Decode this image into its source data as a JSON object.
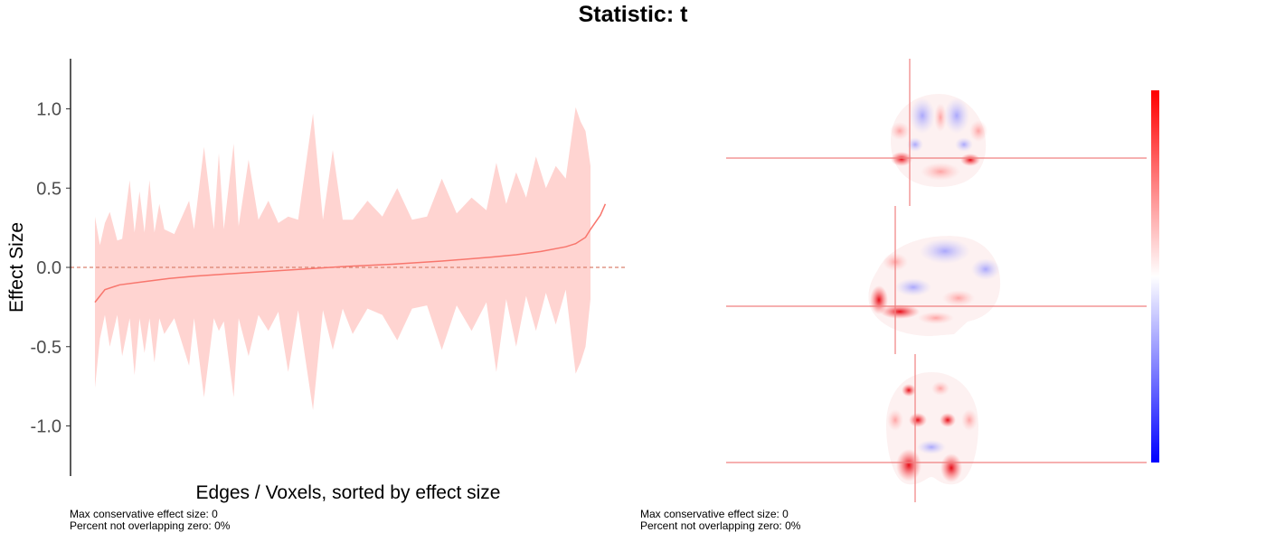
{
  "title": "Statistic: t",
  "left_panel": {
    "caption_line1": "Max conservative effect size: 0",
    "caption_line2": "Percent not overlapping zero: 0%"
  },
  "right_panel": {
    "caption_line1": "Max conservative effect size: 0",
    "caption_line2": "Percent not overlapping zero: 0%",
    "views": [
      "coronal",
      "sagittal",
      "axial"
    ],
    "colorbar_colors": [
      "#ff0000",
      "#ffffff",
      "#0000ff"
    ]
  },
  "chart_data": {
    "type": "area",
    "title": "Statistic: t",
    "xlabel": "Edges / Voxels, sorted by effect size",
    "ylabel": "Effect Size",
    "ylim": [
      -1.32,
      1.32
    ],
    "yticks": [
      -1.0,
      -0.5,
      0.0,
      0.5,
      1.0
    ],
    "ytick_labels": [
      "-1.0",
      "-0.5",
      "0.0",
      "0.5",
      "1.0"
    ],
    "x_ticks_shown": false,
    "grid": false,
    "reference_line": 0,
    "series": [
      {
        "role": "effect-size",
        "color": "#f8766d",
        "x": [
          0,
          0.02,
          0.05,
          0.1,
          0.15,
          0.2,
          0.3,
          0.4,
          0.5,
          0.6,
          0.7,
          0.8,
          0.85,
          0.9,
          0.95,
          0.97,
          0.99,
          1.0,
          1.02,
          1.03
        ],
        "values": [
          -0.22,
          -0.14,
          -0.11,
          -0.09,
          -0.07,
          -0.055,
          -0.035,
          -0.015,
          0.005,
          0.02,
          0.04,
          0.065,
          0.08,
          0.1,
          0.13,
          0.15,
          0.19,
          0.24,
          0.33,
          0.4
        ]
      },
      {
        "role": "confidence-band-upper",
        "color": "#ffd4d1",
        "x": [
          0,
          0.01,
          0.02,
          0.03,
          0.045,
          0.055,
          0.07,
          0.08,
          0.09,
          0.1,
          0.11,
          0.12,
          0.13,
          0.14,
          0.16,
          0.19,
          0.2,
          0.22,
          0.24,
          0.25,
          0.26,
          0.28,
          0.29,
          0.31,
          0.33,
          0.35,
          0.37,
          0.39,
          0.41,
          0.44,
          0.46,
          0.48,
          0.5,
          0.52,
          0.55,
          0.58,
          0.61,
          0.64,
          0.67,
          0.7,
          0.73,
          0.76,
          0.79,
          0.81,
          0.83,
          0.85,
          0.87,
          0.89,
          0.91,
          0.93,
          0.95,
          0.97,
          0.98,
          0.99,
          1.0
        ],
        "values": [
          0.32,
          0.14,
          0.28,
          0.35,
          0.17,
          0.18,
          0.55,
          0.22,
          0.48,
          0.22,
          0.55,
          0.22,
          0.4,
          0.24,
          0.21,
          0.42,
          0.24,
          0.76,
          0.24,
          0.72,
          0.24,
          0.78,
          0.26,
          0.68,
          0.3,
          0.42,
          0.28,
          0.32,
          0.3,
          0.97,
          0.3,
          0.74,
          0.3,
          0.3,
          0.42,
          0.32,
          0.5,
          0.3,
          0.32,
          0.56,
          0.34,
          0.44,
          0.36,
          0.66,
          0.4,
          0.6,
          0.44,
          0.7,
          0.5,
          0.64,
          0.56,
          1.01,
          0.92,
          0.86,
          0.64
        ]
      },
      {
        "role": "confidence-band-lower",
        "color": "#ffd4d1",
        "x": [
          0,
          0.01,
          0.02,
          0.03,
          0.045,
          0.055,
          0.07,
          0.08,
          0.09,
          0.1,
          0.11,
          0.12,
          0.13,
          0.14,
          0.16,
          0.19,
          0.2,
          0.22,
          0.24,
          0.25,
          0.26,
          0.28,
          0.29,
          0.31,
          0.33,
          0.35,
          0.37,
          0.39,
          0.41,
          0.44,
          0.46,
          0.48,
          0.5,
          0.52,
          0.55,
          0.58,
          0.61,
          0.64,
          0.67,
          0.7,
          0.73,
          0.76,
          0.79,
          0.81,
          0.83,
          0.85,
          0.87,
          0.89,
          0.91,
          0.93,
          0.95,
          0.97,
          0.98,
          0.99,
          1.0
        ],
        "values": [
          -0.76,
          -0.45,
          -0.3,
          -0.5,
          -0.3,
          -0.56,
          -0.32,
          -0.68,
          -0.32,
          -0.54,
          -0.32,
          -0.6,
          -0.32,
          -0.42,
          -0.32,
          -0.62,
          -0.32,
          -0.82,
          -0.32,
          -0.4,
          -0.34,
          -0.82,
          -0.32,
          -0.56,
          -0.3,
          -0.4,
          -0.28,
          -0.66,
          -0.27,
          -0.9,
          -0.27,
          -0.52,
          -0.26,
          -0.42,
          -0.26,
          -0.3,
          -0.46,
          -0.26,
          -0.24,
          -0.52,
          -0.24,
          -0.4,
          -0.22,
          -0.66,
          -0.2,
          -0.5,
          -0.18,
          -0.4,
          -0.16,
          -0.36,
          -0.14,
          -0.67,
          -0.6,
          -0.5,
          -0.2
        ]
      }
    ]
  }
}
